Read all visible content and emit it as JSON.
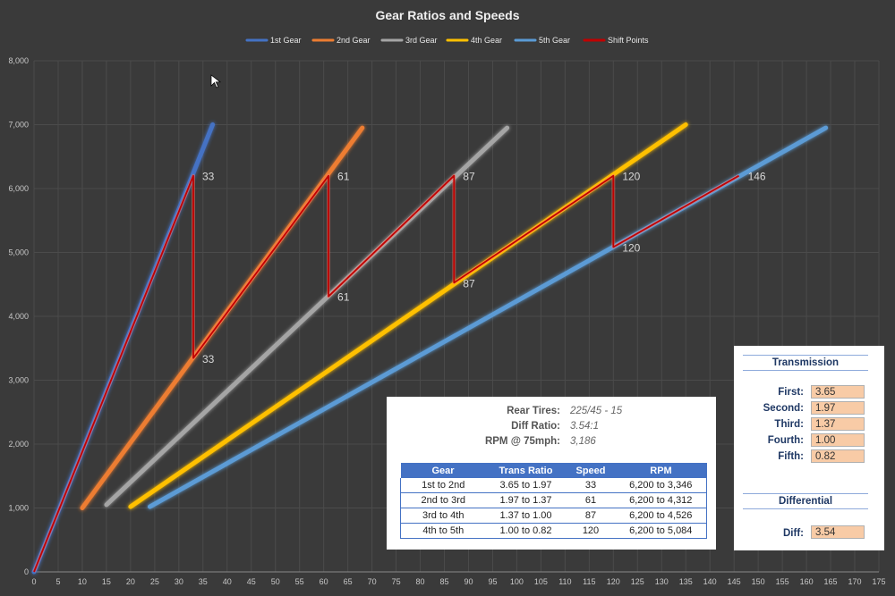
{
  "chart_data": {
    "type": "line",
    "title": "Gear Ratios and Speeds",
    "xlim": [
      0,
      175
    ],
    "ylim": [
      0,
      8000
    ],
    "x_ticks": [
      0,
      5,
      10,
      15,
      20,
      25,
      30,
      35,
      40,
      45,
      50,
      55,
      60,
      65,
      70,
      75,
      80,
      85,
      90,
      95,
      100,
      105,
      110,
      115,
      120,
      125,
      130,
      135,
      140,
      145,
      150,
      155,
      160,
      165,
      170,
      175
    ],
    "y_ticks": [
      0,
      1000,
      2000,
      3000,
      4000,
      5000,
      6000,
      7000,
      8000
    ],
    "y_tick_labels": [
      "0",
      "1,000",
      "2,000",
      "3,000",
      "4,000",
      "5,000",
      "6,000",
      "7,000",
      "8,000"
    ],
    "legend_position": "top-center",
    "series": [
      {
        "name": "1st Gear",
        "color": "#4472c4",
        "points": [
          [
            0,
            0
          ],
          [
            37,
            7000
          ]
        ]
      },
      {
        "name": "2nd Gear",
        "color": "#ed7d31",
        "points": [
          [
            10,
            1000
          ],
          [
            68,
            6950
          ]
        ]
      },
      {
        "name": "3rd Gear",
        "color": "#a5a5a5",
        "points": [
          [
            15,
            1050
          ],
          [
            98,
            6950
          ]
        ]
      },
      {
        "name": "4th Gear",
        "color": "#ffc000",
        "points": [
          [
            20,
            1020
          ],
          [
            135,
            7000
          ]
        ]
      },
      {
        "name": "5th Gear",
        "color": "#5b9bd5",
        "points": [
          [
            24,
            1020
          ],
          [
            164,
            6950
          ]
        ]
      },
      {
        "name": "Shift Points",
        "color": "#c00000",
        "points": [
          [
            0,
            0
          ],
          [
            33,
            6200
          ],
          [
            33,
            3346
          ],
          [
            61,
            6200
          ],
          [
            61,
            4312
          ],
          [
            87,
            6200
          ],
          [
            87,
            4526
          ],
          [
            120,
            6200
          ],
          [
            120,
            5084
          ],
          [
            146,
            6200
          ]
        ]
      }
    ],
    "annotations": [
      {
        "x": 33,
        "y": 6200,
        "text": "33"
      },
      {
        "x": 33,
        "y": 3346,
        "text": "33"
      },
      {
        "x": 61,
        "y": 6200,
        "text": "61"
      },
      {
        "x": 61,
        "y": 4312,
        "text": "61"
      },
      {
        "x": 87,
        "y": 6200,
        "text": "87"
      },
      {
        "x": 87,
        "y": 4526,
        "text": "87"
      },
      {
        "x": 120,
        "y": 6200,
        "text": "120"
      },
      {
        "x": 120,
        "y": 5084,
        "text": "120"
      },
      {
        "x": 146,
        "y": 6200,
        "text": "146"
      }
    ]
  },
  "info": {
    "rear_tires_label": "Rear Tires:",
    "rear_tires_value": "225/45 - 15",
    "diff_ratio_label": "Diff Ratio:",
    "diff_ratio_value": "3.54:1",
    "rpm_label": "RPM @ 75mph:",
    "rpm_value": "3,186"
  },
  "shift_table": {
    "headers": [
      "Gear",
      "Trans Ratio",
      "Speed",
      "RPM"
    ],
    "rows": [
      [
        "1st to 2nd",
        "3.65 to 1.97",
        "33",
        "6,200 to 3,346"
      ],
      [
        "2nd to 3rd",
        "1.97 to 1.37",
        "61",
        "6,200 to 4,312"
      ],
      [
        "3rd to 4th",
        "1.37 to 1.00",
        "87",
        "6,200 to 4,526"
      ],
      [
        "4th to 5th",
        "1.00 to 0.82",
        "120",
        "6,200 to 5,084"
      ]
    ]
  },
  "transmission": {
    "title": "Transmission",
    "first_label": "First:",
    "first_value": "3.65",
    "second_label": "Second:",
    "second_value": "1.97",
    "third_label": "Third:",
    "third_value": "1.37",
    "fourth_label": "Fourth:",
    "fourth_value": "1.00",
    "fifth_label": "Fifth:",
    "fifth_value": "0.82",
    "differential_title": "Differential",
    "diff_label": "Diff:",
    "diff_value": "3.54"
  }
}
